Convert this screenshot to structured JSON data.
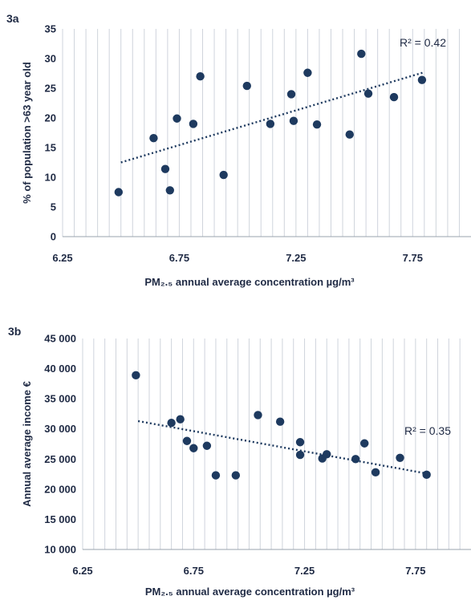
{
  "chart_data": [
    {
      "id": "3a",
      "type": "scatter",
      "panel_label": "3a",
      "xlabel": "PM₂.₅ annual average concentration µg/m³",
      "ylabel": "% of population >63 year old",
      "xlim": [
        6.25,
        8.0
      ],
      "ylim": [
        0,
        35
      ],
      "x_ticks": [
        6.25,
        6.75,
        7.25,
        7.75
      ],
      "x_tick_labels": [
        "6.25",
        "6.75",
        "7.25",
        "7.75"
      ],
      "y_ticks": [
        0,
        5,
        10,
        15,
        20,
        25,
        30,
        35
      ],
      "y_tick_labels": [
        "0",
        "5",
        "10",
        "15",
        "20",
        "25",
        "30",
        "35"
      ],
      "grid": "vertical",
      "trendline": {
        "x": [
          6.5,
          7.8
        ],
        "y": [
          12.5,
          27.7
        ],
        "style": "dotted"
      },
      "annotation": "R² = 0.42",
      "points": [
        {
          "x": 6.49,
          "y": 7.5
        },
        {
          "x": 6.64,
          "y": 16.6
        },
        {
          "x": 6.69,
          "y": 11.4
        },
        {
          "x": 6.71,
          "y": 7.8
        },
        {
          "x": 6.74,
          "y": 19.9
        },
        {
          "x": 6.81,
          "y": 19.0
        },
        {
          "x": 6.84,
          "y": 27.0
        },
        {
          "x": 6.94,
          "y": 10.4
        },
        {
          "x": 7.04,
          "y": 25.4
        },
        {
          "x": 7.14,
          "y": 19.0
        },
        {
          "x": 7.23,
          "y": 24.0
        },
        {
          "x": 7.24,
          "y": 19.5
        },
        {
          "x": 7.3,
          "y": 27.6
        },
        {
          "x": 7.34,
          "y": 18.9
        },
        {
          "x": 7.48,
          "y": 17.2
        },
        {
          "x": 7.53,
          "y": 30.8
        },
        {
          "x": 7.56,
          "y": 24.1
        },
        {
          "x": 7.67,
          "y": 23.5
        },
        {
          "x": 7.79,
          "y": 26.4
        }
      ]
    },
    {
      "id": "3b",
      "type": "scatter",
      "panel_label": "3b",
      "xlabel": "PM₂.₅ annual average concentration µg/m³",
      "ylabel": "Annual average income €",
      "xlim": [
        6.25,
        8.0
      ],
      "ylim": [
        10000,
        45000
      ],
      "x_ticks": [
        6.25,
        6.75,
        7.25,
        7.75
      ],
      "x_tick_labels": [
        "6.25",
        "6.75",
        "7.25",
        "7.75"
      ],
      "y_ticks": [
        10000,
        15000,
        20000,
        25000,
        30000,
        35000,
        40000,
        45000
      ],
      "y_tick_labels": [
        "10 000",
        "15 000",
        "20 000",
        "25 000",
        "30 000",
        "35 000",
        "40 000",
        "45 000"
      ],
      "grid": "vertical",
      "trendline": {
        "x": [
          6.5,
          7.8
        ],
        "y": [
          31300,
          22600
        ],
        "style": "dotted"
      },
      "annotation": "R² = 0.35",
      "points": [
        {
          "x": 6.49,
          "y": 38900
        },
        {
          "x": 6.65,
          "y": 31000
        },
        {
          "x": 6.69,
          "y": 31600
        },
        {
          "x": 6.72,
          "y": 28000
        },
        {
          "x": 6.75,
          "y": 26800
        },
        {
          "x": 6.81,
          "y": 27200
        },
        {
          "x": 6.85,
          "y": 22300
        },
        {
          "x": 6.94,
          "y": 22300
        },
        {
          "x": 7.04,
          "y": 32300
        },
        {
          "x": 7.14,
          "y": 31200
        },
        {
          "x": 7.23,
          "y": 27800
        },
        {
          "x": 7.23,
          "y": 25700
        },
        {
          "x": 7.33,
          "y": 25100
        },
        {
          "x": 7.35,
          "y": 25800
        },
        {
          "x": 7.48,
          "y": 25000
        },
        {
          "x": 7.52,
          "y": 27600
        },
        {
          "x": 7.57,
          "y": 22800
        },
        {
          "x": 7.68,
          "y": 25200
        },
        {
          "x": 7.8,
          "y": 22400
        }
      ]
    }
  ]
}
